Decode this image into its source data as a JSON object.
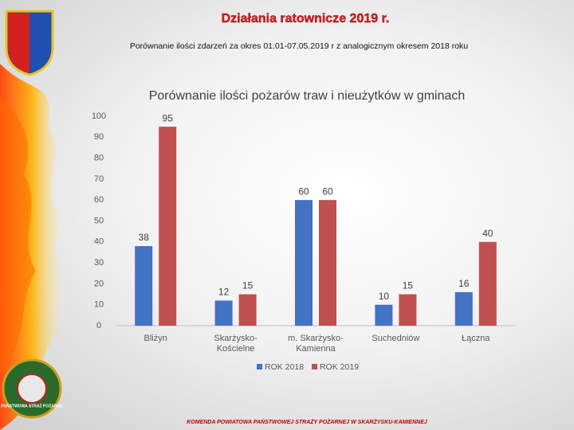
{
  "header": {
    "title": "Działania ratownicze 2019 r.",
    "subtitle": "Porównanie ilości zdarzeń za okres 01.01-07.05.2019 r z analogicznym okresem 2018 roku"
  },
  "chart_data": {
    "type": "bar",
    "title": "Porównanie ilości pożarów traw i nieużytków w gminach",
    "categories": [
      "Bliżyn",
      "Skarżysko-Kościelne",
      "m. Skarżysko-Kamienna",
      "Suchedniów",
      "Łączna"
    ],
    "series": [
      {
        "name": "ROK 2018",
        "color": "#4472c4",
        "values": [
          38,
          12,
          60,
          10,
          16
        ]
      },
      {
        "name": "ROK 2019",
        "color": "#c0504d",
        "values": [
          95,
          15,
          60,
          15,
          40
        ]
      }
    ],
    "ylim": [
      0,
      100
    ],
    "yticks": [
      0,
      10,
      20,
      30,
      40,
      50,
      60,
      70,
      80,
      90,
      100
    ],
    "grid": false,
    "legend": "bottom"
  },
  "badge": "PAŃSTWOWA STRAŻ POŻARNA",
  "footer": "KOMENDA POWIATOWA PAŃSTWOWEJ STRAŻY POŻARNEJ W SKARŻYSKU-KAMIENNEJ"
}
